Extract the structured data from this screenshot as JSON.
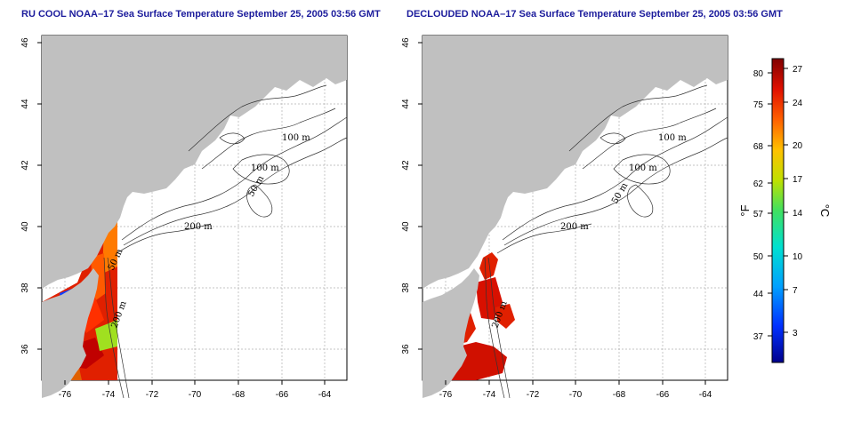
{
  "panels": [
    {
      "id": "left",
      "title": "RU COOL NOAA–17 Sea Surface Temperature September 25, 2005 03:56 GMT",
      "x_ticks": [
        "-76",
        "-74",
        "-72",
        "-70",
        "-68",
        "-66",
        "-64"
      ],
      "y_ticks": [
        "36",
        "38",
        "40",
        "42",
        "44",
        "46"
      ],
      "contour_labels": [
        "100 m",
        "100 m",
        "50 m",
        "200 m",
        "50 m",
        "200 m"
      ]
    },
    {
      "id": "right",
      "title": "DECLOUDED NOAA–17 Sea Surface Temperature September 25, 2005 03:56 GMT",
      "x_ticks": [
        "-76",
        "-74",
        "-72",
        "-70",
        "-68",
        "-66",
        "-64"
      ],
      "y_ticks": [
        "36",
        "38",
        "40",
        "42",
        "44",
        "46"
      ],
      "contour_labels": [
        "100 m",
        "100 m",
        "50 m",
        "200 m",
        "200 m"
      ]
    }
  ],
  "colorbar": {
    "fahrenheit_label": "°F",
    "celsius_label": "°C",
    "fahrenheit_ticks": [
      "80",
      "75",
      "68",
      "62",
      "57",
      "50",
      "44",
      "37"
    ],
    "celsius_ticks": [
      "27",
      "24",
      "20",
      "17",
      "14",
      "10",
      "7",
      "3"
    ]
  },
  "colors": {
    "land": "#c0c0c0",
    "ocean": "#ffffff",
    "title": "#1c1c9c",
    "grid": "#b0b0b0"
  }
}
